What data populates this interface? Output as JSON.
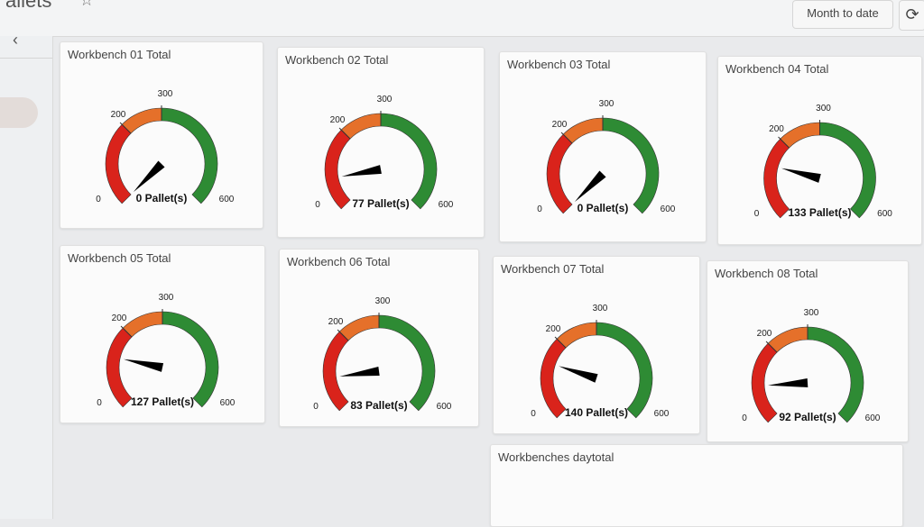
{
  "header": {
    "title": "allets",
    "range_label": "Month to date",
    "refresh_icon": "refresh-icon"
  },
  "sidebar": {
    "back_icon": "chevron-left-icon"
  },
  "gauge_scale": {
    "min": 0,
    "max": 600,
    "tick_labels": [
      "0",
      "200",
      "300",
      "600"
    ],
    "bands": [
      {
        "from": 0,
        "to": 200,
        "color": "#d9231b"
      },
      {
        "from": 200,
        "to": 300,
        "color": "#e5702a"
      },
      {
        "from": 300,
        "to": 600,
        "color": "#2e8b34"
      }
    ]
  },
  "gauges": [
    {
      "title": "Workbench 01 Total",
      "value": 0,
      "readout": "0 Pallet(s)"
    },
    {
      "title": "Workbench 02 Total",
      "value": 77,
      "readout": "77 Pallet(s)"
    },
    {
      "title": "Workbench 03 Total",
      "value": 0,
      "readout": "0 Pallet(s)"
    },
    {
      "title": "Workbench 04 Total",
      "value": 133,
      "readout": "133 Pallet(s)"
    },
    {
      "title": "Workbench 05 Total",
      "value": 127,
      "readout": "127 Pallet(s)"
    },
    {
      "title": "Workbench 06 Total",
      "value": 83,
      "readout": "83 Pallet(s)"
    },
    {
      "title": "Workbench 07 Total",
      "value": 140,
      "readout": "140 Pallet(s)"
    },
    {
      "title": "Workbench 08 Total",
      "value": 92,
      "readout": "92 Pallet(s)"
    }
  ],
  "daytotal": {
    "title": "Workbenches daytotal"
  }
}
